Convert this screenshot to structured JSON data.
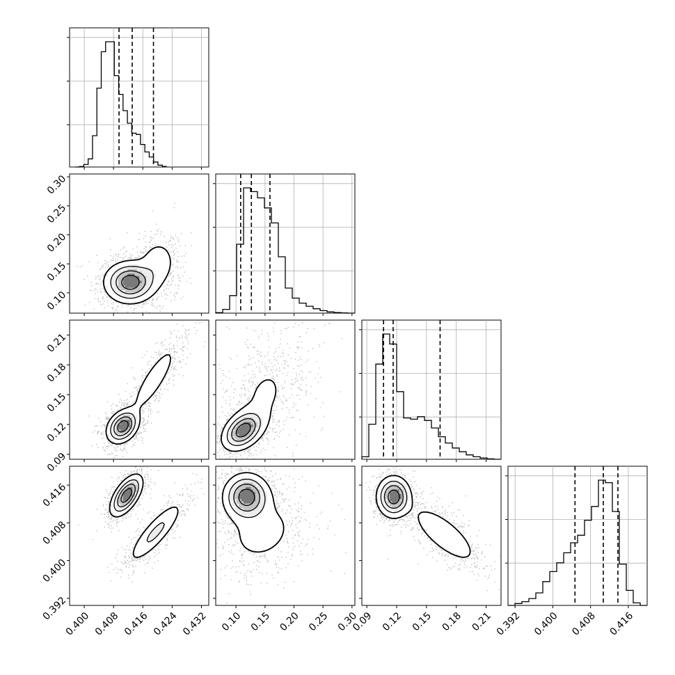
{
  "chart_data": {
    "type": "corner",
    "grid": true,
    "n_params": 4,
    "params": [
      {
        "range": [
          0.396,
          0.434
        ],
        "ticks": [
          0.4,
          0.408,
          0.416,
          0.424,
          0.432
        ],
        "tick_labels": [
          "0.400",
          "0.408",
          "0.416",
          "0.424",
          "0.432"
        ],
        "quantiles": [
          0.4095,
          0.4131,
          0.4189
        ]
      },
      {
        "range": [
          0.065,
          0.305
        ],
        "ticks": [
          0.1,
          0.15,
          0.2,
          0.25,
          0.3
        ],
        "tick_labels": [
          "0.10",
          "0.15",
          "0.20",
          "0.25",
          "0.30"
        ],
        "quantiles": [
          0.108,
          0.1265,
          0.1585
        ]
      },
      {
        "range": [
          0.085,
          0.225
        ],
        "ticks": [
          0.09,
          0.12,
          0.15,
          0.18,
          0.21
        ],
        "tick_labels": [
          "0.09",
          "0.12",
          "0.15",
          "0.18",
          "0.21"
        ],
        "quantiles": [
          0.1068,
          0.1165,
          0.1637
        ]
      },
      {
        "range": [
          0.3905,
          0.42
        ],
        "ticks": [
          0.392,
          0.4,
          0.408,
          0.416
        ],
        "tick_labels": [
          "0.392",
          "0.400",
          "0.408",
          "0.416"
        ],
        "quantiles": [
          0.4047,
          0.4107,
          0.4138
        ]
      }
    ],
    "histograms": [
      {
        "param": 0,
        "edges": [
          0.3975,
          0.4225
        ],
        "counts": [
          0.0,
          0.004,
          0.02,
          0.065,
          0.25,
          0.63,
          0.92,
          1.0,
          1.0,
          0.73,
          0.58,
          0.45,
          0.35,
          0.27,
          0.26,
          0.18,
          0.12,
          0.08,
          0.04,
          0.015,
          0.005
        ]
      },
      {
        "param": 1,
        "edges": [
          0.065,
          0.305
        ],
        "counts": [
          0.004,
          0.03,
          0.14,
          0.55,
          1.0,
          0.97,
          0.92,
          0.84,
          0.72,
          0.45,
          0.2,
          0.12,
          0.08,
          0.055,
          0.035,
          0.02,
          0.01,
          0.005,
          0.002,
          0.0
        ]
      },
      {
        "param": 2,
        "edges": [
          0.085,
          0.225
        ],
        "counts": [
          0.02,
          0.28,
          0.76,
          1.0,
          0.92,
          0.54,
          0.33,
          0.32,
          0.34,
          0.31,
          0.25,
          0.18,
          0.13,
          0.09,
          0.06,
          0.035,
          0.02,
          0.01,
          0.003,
          0.0
        ]
      },
      {
        "param": 3,
        "edges": [
          0.3905,
          0.42
        ],
        "counts": [
          0.0,
          0.015,
          0.03,
          0.055,
          0.1,
          0.19,
          0.27,
          0.34,
          0.42,
          0.5,
          0.56,
          0.68,
          0.79,
          1.0,
          0.98,
          0.75,
          0.33,
          0.12,
          0.02,
          0.0
        ]
      }
    ],
    "pairs": [
      {
        "x": 0,
        "y": 1,
        "components": [
          {
            "w": 0.78,
            "mx": 0.4125,
            "my": 0.118,
            "sx": 0.0035,
            "sy": 0.018,
            "rho": 0.0
          },
          {
            "w": 0.22,
            "mx": 0.42,
            "my": 0.15,
            "sx": 0.003,
            "sy": 0.025,
            "rho": 0.1
          }
        ]
      },
      {
        "x": 0,
        "y": 2,
        "components": [
          {
            "w": 0.62,
            "mx": 0.4105,
            "my": 0.118,
            "sx": 0.0022,
            "sy": 0.0085,
            "rho": 0.3
          },
          {
            "w": 0.38,
            "mx": 0.419,
            "my": 0.165,
            "sx": 0.004,
            "sy": 0.022,
            "rho": 0.85
          }
        ]
      },
      {
        "x": 0,
        "y": 3,
        "components": [
          {
            "w": 0.58,
            "mx": 0.4115,
            "my": 0.4138,
            "sx": 0.0022,
            "sy": 0.0022,
            "rho": 0.6
          },
          {
            "w": 0.42,
            "mx": 0.4195,
            "my": 0.406,
            "sx": 0.004,
            "sy": 0.0035,
            "rho": 0.85
          }
        ]
      },
      {
        "x": 1,
        "y": 2,
        "components": [
          {
            "w": 0.55,
            "mx": 0.112,
            "my": 0.114,
            "sx": 0.018,
            "sy": 0.01,
            "rho": 0.4
          },
          {
            "w": 0.45,
            "mx": 0.15,
            "my": 0.15,
            "sx": 0.035,
            "sy": 0.028,
            "rho": 0.3
          }
        ]
      },
      {
        "x": 1,
        "y": 3,
        "components": [
          {
            "w": 0.6,
            "mx": 0.118,
            "my": 0.4135,
            "sx": 0.02,
            "sy": 0.0025,
            "rho": 0.0
          },
          {
            "w": 0.4,
            "mx": 0.145,
            "my": 0.406,
            "sx": 0.04,
            "sy": 0.0045,
            "rho": 0.2
          }
        ]
      },
      {
        "x": 2,
        "y": 3,
        "components": [
          {
            "w": 0.58,
            "mx": 0.117,
            "my": 0.4135,
            "sx": 0.0085,
            "sy": 0.0022,
            "rho": 0.0
          },
          {
            "w": 0.42,
            "mx": 0.168,
            "my": 0.4055,
            "sx": 0.019,
            "sy": 0.0035,
            "rho": -0.75
          }
        ]
      }
    ]
  }
}
